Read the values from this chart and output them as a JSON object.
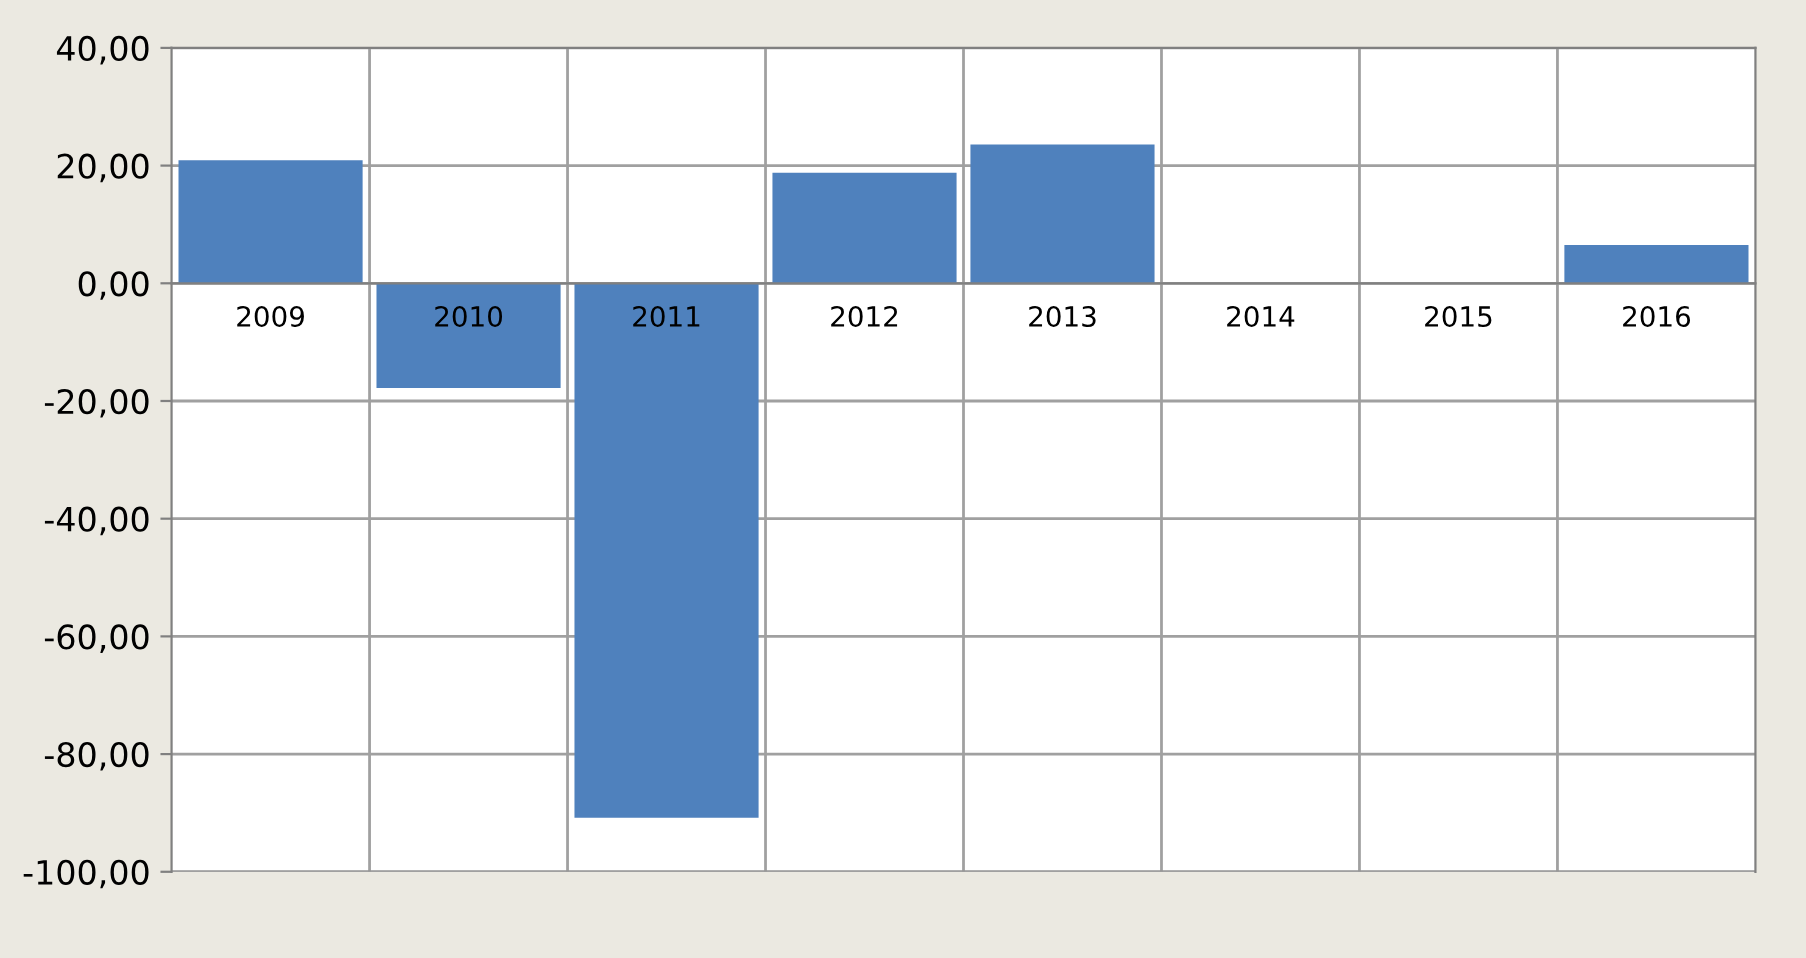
{
  "chart_data": {
    "type": "bar",
    "categories": [
      "2009",
      "2010",
      "2011",
      "2012",
      "2013",
      "2014",
      "2015",
      "2016"
    ],
    "values": [
      20.9,
      -17.8,
      -90.8,
      18.8,
      23.6,
      null,
      null,
      6.5
    ],
    "color": "#4f81bd",
    "ylim": [
      -100,
      40
    ],
    "yticks": [
      {
        "value": -100,
        "label": "-100,00"
      },
      {
        "value": -80,
        "label": "-80,00"
      },
      {
        "value": -60,
        "label": "-60,00"
      },
      {
        "value": -40,
        "label": "-40,00"
      },
      {
        "value": -20,
        "label": "-20,00"
      },
      {
        "value": 0,
        "label": "0,00"
      },
      {
        "value": 20,
        "label": "20,00"
      },
      {
        "value": 40,
        "label": "40,00"
      }
    ],
    "grid": true
  }
}
